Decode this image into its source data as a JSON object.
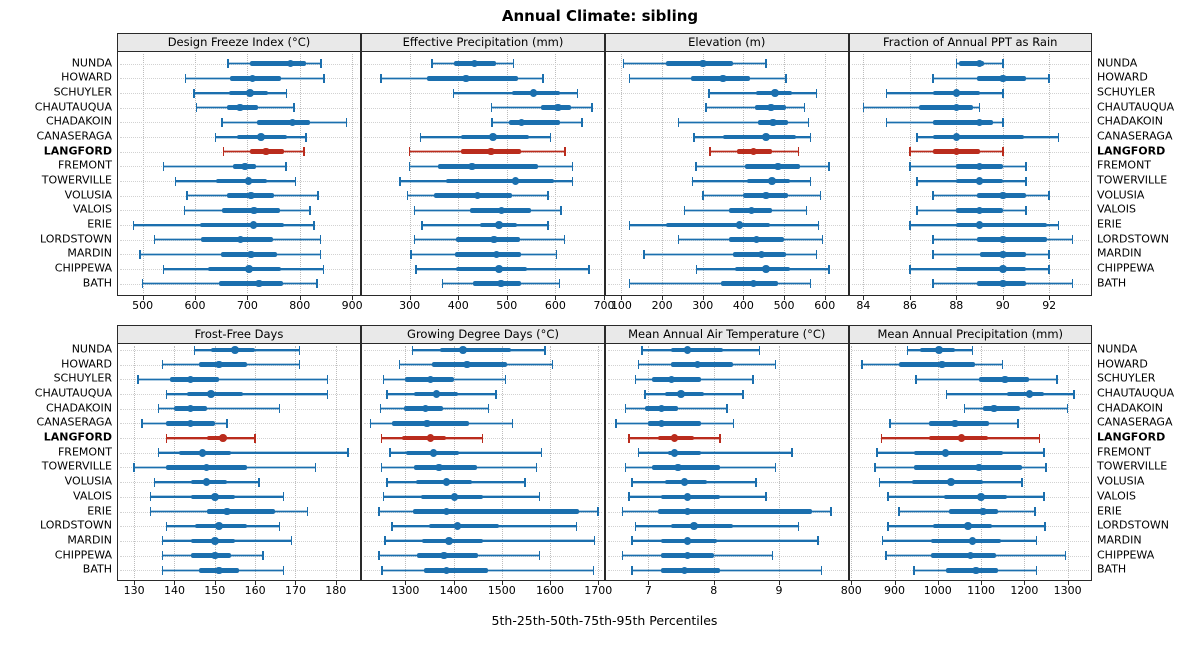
{
  "title": "Annual Climate: sibling",
  "caption": "5th-25th-50th-75th-95th Percentiles",
  "highlight_site": "LANGFORD",
  "colors": {
    "series_blue": "#1b6fae",
    "highlight_red": "#ba2c1d",
    "strip_bg": "#e9e9e9",
    "grid_dotted": "#c4c4c4",
    "panel_border": "#2a2a2a"
  },
  "chart_data": {
    "type": "interval-dotplot-matrix",
    "percentiles": [
      "5th",
      "25th",
      "50th",
      "75th",
      "95th"
    ],
    "legend_note": "thin line = 5th-95th, thick bar = 25th-75th, dot = median; LANGFORD highlighted in red",
    "sites": [
      "NUNDA",
      "HOWARD",
      "SCHUYLER",
      "CHAUTAUQUA",
      "CHADAKOIN",
      "CANASERAGA",
      "LANGFORD",
      "FREMONT",
      "TOWERVILLE",
      "VOLUSIA",
      "VALOIS",
      "ERIE",
      "LORDSTOWN",
      "MARDIN",
      "CHIPPEWA",
      "BATH"
    ],
    "panels": [
      {
        "title": "Design Freeze Index (°C)",
        "grid_row": 0,
        "grid_col": 0,
        "xlim": [
          453,
          915
        ],
        "ticks": [
          500,
          600,
          700,
          800,
          900
        ],
        "values": {
          "NUNDA": [
            663,
            705,
            782,
            811,
            841
          ],
          "HOWARD": [
            582,
            667,
            710,
            765,
            846
          ],
          "SCHUYLER": [
            598,
            664,
            705,
            740,
            775
          ],
          "CHAUTAUQUA": [
            603,
            661,
            686,
            721,
            789
          ],
          "CHADAKOIN": [
            652,
            718,
            786,
            819,
            889
          ],
          "CANASERAGA": [
            639,
            680,
            726,
            775,
            812
          ],
          "LANGFORD": [
            654,
            705,
            736,
            770,
            808
          ],
          "FREMONT": [
            540,
            673,
            695,
            717,
            774
          ],
          "TOWERVILLE": [
            563,
            640,
            702,
            737,
            792
          ],
          "VOLUSIA": [
            585,
            662,
            707,
            750,
            835
          ],
          "VALOIS": [
            580,
            652,
            713,
            762,
            820
          ],
          "ERIE": [
            483,
            610,
            712,
            770,
            827
          ],
          "LORDSTOWN": [
            523,
            612,
            687,
            748,
            840
          ],
          "MARDIN": [
            495,
            650,
            707,
            757,
            840
          ],
          "CHIPPEWA": [
            540,
            625,
            703,
            765,
            845
          ],
          "BATH": [
            500,
            645,
            722,
            768,
            833
          ]
        }
      },
      {
        "title": "Effective Precipitation (mm)",
        "grid_row": 0,
        "grid_col": 1,
        "xlim": [
          202,
          700
        ],
        "ticks": [
          300,
          400,
          500,
          600,
          700
        ],
        "values": {
          "NUNDA": [
            346,
            392,
            433,
            478,
            514
          ],
          "HOWARD": [
            241,
            336,
            416,
            523,
            574
          ],
          "SCHUYLER": [
            390,
            510,
            555,
            610,
            645
          ],
          "CHAUTAUQUA": [
            469,
            571,
            605,
            632,
            675
          ],
          "CHADAKOIN": [
            470,
            505,
            530,
            610,
            655
          ],
          "CANASERAGA": [
            322,
            405,
            472,
            545,
            590
          ],
          "LANGFORD": [
            300,
            405,
            467,
            530,
            620
          ],
          "FREMONT": [
            300,
            358,
            428,
            565,
            635
          ],
          "TOWERVILLE": [
            280,
            375,
            518,
            598,
            635
          ],
          "VOLUSIA": [
            296,
            351,
            440,
            511,
            585
          ],
          "VALOIS": [
            310,
            424,
            489,
            549,
            611
          ],
          "ERIE": [
            325,
            444,
            484,
            522,
            585
          ],
          "LORDSTOWN": [
            310,
            395,
            474,
            527,
            619
          ],
          "MARDIN": [
            303,
            393,
            479,
            530,
            602
          ],
          "CHIPPEWA": [
            313,
            395,
            484,
            542,
            669
          ],
          "BATH": [
            368,
            431,
            488,
            529,
            608
          ]
        }
      },
      {
        "title": "Elevation (m)",
        "grid_row": 0,
        "grid_col": 2,
        "xlim": [
          62,
          656
        ],
        "ticks": [
          100,
          200,
          300,
          400,
          500,
          600
        ],
        "values": {
          "NUNDA": [
            105,
            210,
            300,
            375,
            455
          ],
          "HOWARD": [
            120,
            270,
            350,
            415,
            505
          ],
          "SCHUYLER": [
            315,
            430,
            478,
            520,
            580
          ],
          "CHAUTAUQUA": [
            308,
            428,
            468,
            505,
            550
          ],
          "CHADAKOIN": [
            240,
            435,
            473,
            510,
            560
          ],
          "CANASERAGA": [
            278,
            350,
            455,
            530,
            565
          ],
          "LANGFORD": [
            318,
            385,
            425,
            470,
            535
          ],
          "FREMONT": [
            283,
            405,
            485,
            540,
            610
          ],
          "TOWERVILLE": [
            275,
            410,
            470,
            515,
            565
          ],
          "VOLUSIA": [
            300,
            400,
            455,
            510,
            590
          ],
          "VALOIS": [
            255,
            365,
            420,
            470,
            555
          ],
          "ERIE": [
            120,
            210,
            390,
            465,
            585
          ],
          "LORDSTOWN": [
            240,
            365,
            432,
            500,
            595
          ],
          "MARDIN": [
            155,
            375,
            445,
            505,
            580
          ],
          "CHIPPEWA": [
            285,
            380,
            455,
            515,
            610
          ],
          "BATH": [
            120,
            345,
            425,
            485,
            565
          ]
        }
      },
      {
        "title": "Fraction of Annual PPT as Rain",
        "grid_row": 0,
        "grid_col": 3,
        "xlim": [
          83.4,
          93.8
        ],
        "ticks": [
          84,
          86,
          88,
          90,
          92
        ],
        "values": {
          "NUNDA": [
            88,
            88.1,
            89,
            89.2,
            90
          ],
          "HOWARD": [
            87,
            88.9,
            90,
            91,
            92
          ],
          "SCHUYLER": [
            85,
            87,
            88,
            89,
            90
          ],
          "CHAUTAUQUA": [
            84,
            86.4,
            88,
            88.7,
            89
          ],
          "CHADAKOIN": [
            85,
            87,
            89,
            89.6,
            90
          ],
          "CANASERAGA": [
            86.3,
            87,
            88,
            90.9,
            92.4
          ],
          "LANGFORD": [
            86,
            87,
            88,
            89,
            90
          ],
          "FREMONT": [
            86,
            88,
            89,
            90,
            91
          ],
          "TOWERVILLE": [
            86.3,
            88,
            89,
            90,
            91
          ],
          "VOLUSIA": [
            87,
            88.9,
            90,
            91,
            92
          ],
          "VALOIS": [
            86.3,
            88,
            89,
            90,
            91
          ],
          "ERIE": [
            86,
            88,
            89,
            91.9,
            92.4
          ],
          "LORDSTOWN": [
            87,
            88.9,
            90,
            91.9,
            93
          ],
          "MARDIN": [
            87,
            89,
            90,
            91,
            92
          ],
          "CHIPPEWA": [
            86,
            88,
            90,
            91,
            92
          ],
          "BATH": [
            87,
            88.9,
            90,
            91,
            93
          ]
        }
      },
      {
        "title": "Frost-Free Days",
        "grid_row": 1,
        "grid_col": 0,
        "xlim": [
          126,
          186
        ],
        "ticks": [
          130,
          140,
          150,
          160,
          170,
          180
        ],
        "values": {
          "NUNDA": [
            145,
            149,
            155,
            160,
            171
          ],
          "HOWARD": [
            137,
            146,
            151,
            158,
            171
          ],
          "SCHUYLER": [
            131,
            139,
            144,
            151,
            178
          ],
          "CHAUTAUQUA": [
            138,
            143,
            149,
            157,
            178
          ],
          "CHADAKOIN": [
            136,
            140,
            144,
            148,
            166
          ],
          "CANASERAGA": [
            132,
            138,
            144,
            150,
            153
          ],
          "LANGFORD": [
            138,
            148,
            152,
            153,
            160
          ],
          "FREMONT": [
            136,
            141,
            147,
            154,
            183
          ],
          "TOWERVILLE": [
            130,
            138,
            148,
            158,
            175
          ],
          "VOLUSIA": [
            135,
            144,
            148,
            153,
            161
          ],
          "VALOIS": [
            134,
            144,
            150,
            155,
            167
          ],
          "ERIE": [
            134,
            148,
            153,
            165,
            173
          ],
          "LORDSTOWN": [
            138,
            145,
            151,
            158,
            166
          ],
          "MARDIN": [
            137,
            144,
            150,
            155,
            169
          ],
          "CHIPPEWA": [
            137,
            144,
            150,
            154,
            162
          ],
          "BATH": [
            137,
            146,
            151,
            156,
            167
          ]
        }
      },
      {
        "title": "Growing Degree Days (°C)",
        "grid_row": 1,
        "grid_col": 1,
        "xlim": [
          1210,
          1712
        ],
        "ticks": [
          1300,
          1400,
          1500,
          1600,
          1700
        ],
        "values": {
          "NUNDA": [
            1315,
            1372,
            1420,
            1520,
            1590
          ],
          "HOWARD": [
            1288,
            1355,
            1428,
            1510,
            1605
          ],
          "SCHUYLER": [
            1255,
            1300,
            1352,
            1400,
            1508
          ],
          "CHAUTAUQUA": [
            1262,
            1318,
            1365,
            1410,
            1488
          ],
          "CHADAKOIN": [
            1248,
            1298,
            1342,
            1378,
            1472
          ],
          "CANASERAGA": [
            1228,
            1272,
            1345,
            1432,
            1522
          ],
          "LANGFORD": [
            1250,
            1292,
            1352,
            1385,
            1460
          ],
          "FREMONT": [
            1268,
            1302,
            1358,
            1412,
            1582
          ],
          "TOWERVILLE": [
            1250,
            1318,
            1370,
            1448,
            1572
          ],
          "VOLUSIA": [
            1262,
            1322,
            1385,
            1438,
            1548
          ],
          "VALOIS": [
            1255,
            1332,
            1402,
            1460,
            1578
          ],
          "ERIE": [
            1245,
            1315,
            1385,
            1660,
            1700
          ],
          "LORDSTOWN": [
            1272,
            1348,
            1408,
            1495,
            1655
          ],
          "MARDIN": [
            1258,
            1335,
            1390,
            1460,
            1692
          ],
          "CHIPPEWA": [
            1245,
            1325,
            1380,
            1450,
            1578
          ],
          "BATH": [
            1252,
            1338,
            1385,
            1472,
            1690
          ]
        }
      },
      {
        "title": "Mean Annual Air Temperature (°C)",
        "grid_row": 1,
        "grid_col": 2,
        "xlim": [
          6.35,
          10.05
        ],
        "ticks": [
          7,
          8,
          9
        ],
        "values": {
          "NUNDA": [
            6.9,
            7.35,
            7.6,
            8.15,
            8.7
          ],
          "HOWARD": [
            6.85,
            7.35,
            7.75,
            8.3,
            8.95
          ],
          "SCHUYLER": [
            6.8,
            7.05,
            7.35,
            7.8,
            8.6
          ],
          "CHAUTAUQUA": [
            6.95,
            7.25,
            7.5,
            7.85,
            8.45
          ],
          "CHADAKOIN": [
            6.65,
            6.95,
            7.2,
            7.45,
            8.2
          ],
          "CANASERAGA": [
            6.5,
            7.0,
            7.2,
            7.8,
            8.3
          ],
          "LANGFORD": [
            6.7,
            7.15,
            7.4,
            7.7,
            8.1
          ],
          "FREMONT": [
            6.85,
            7.3,
            7.4,
            7.8,
            9.2
          ],
          "TOWERVILLE": [
            6.65,
            7.05,
            7.45,
            8.1,
            8.95
          ],
          "VOLUSIA": [
            6.75,
            7.25,
            7.55,
            7.9,
            8.65
          ],
          "VALOIS": [
            6.7,
            7.2,
            7.6,
            8.1,
            8.8
          ],
          "ERIE": [
            6.6,
            7.15,
            7.6,
            9.5,
            9.8
          ],
          "LORDSTOWN": [
            6.8,
            7.35,
            7.7,
            8.3,
            9.3
          ],
          "MARDIN": [
            6.75,
            7.2,
            7.6,
            8.05,
            9.6
          ],
          "CHIPPEWA": [
            6.6,
            7.2,
            7.6,
            8.0,
            8.9
          ],
          "BATH": [
            6.75,
            7.2,
            7.55,
            8.1,
            9.65
          ]
        }
      },
      {
        "title": "Mean Annual Precipitation (mm)",
        "grid_row": 1,
        "grid_col": 3,
        "xlim": [
          796,
          1354
        ],
        "ticks": [
          800,
          900,
          1000,
          1100,
          1200,
          1300
        ],
        "values": {
          "NUNDA": [
            930,
            960,
            1003,
            1040,
            1080
          ],
          "HOWARD": [
            825,
            910,
            1010,
            1085,
            1150
          ],
          "SCHUYLER": [
            950,
            1095,
            1155,
            1210,
            1275
          ],
          "CHAUTAUQUA": [
            1020,
            1160,
            1212,
            1245,
            1315
          ],
          "CHADAKOIN": [
            1062,
            1105,
            1130,
            1190,
            1300
          ],
          "CANASERAGA": [
            890,
            980,
            1040,
            1118,
            1185
          ],
          "LANGFORD": [
            870,
            980,
            1055,
            1115,
            1235
          ],
          "FREMONT": [
            860,
            945,
            1018,
            1150,
            1245
          ],
          "TOWERVILLE": [
            855,
            945,
            1095,
            1195,
            1250
          ],
          "VOLUSIA": [
            865,
            940,
            1030,
            1105,
            1195
          ],
          "VALOIS": [
            885,
            1015,
            1100,
            1160,
            1245
          ],
          "ERIE": [
            910,
            1025,
            1105,
            1140,
            1225
          ],
          "LORDSTOWN": [
            885,
            990,
            1070,
            1125,
            1248
          ],
          "MARDIN": [
            872,
            985,
            1080,
            1145,
            1228
          ],
          "CHIPPEWA": [
            880,
            985,
            1075,
            1135,
            1295
          ],
          "BATH": [
            945,
            1020,
            1088,
            1140,
            1228
          ]
        }
      }
    ]
  }
}
